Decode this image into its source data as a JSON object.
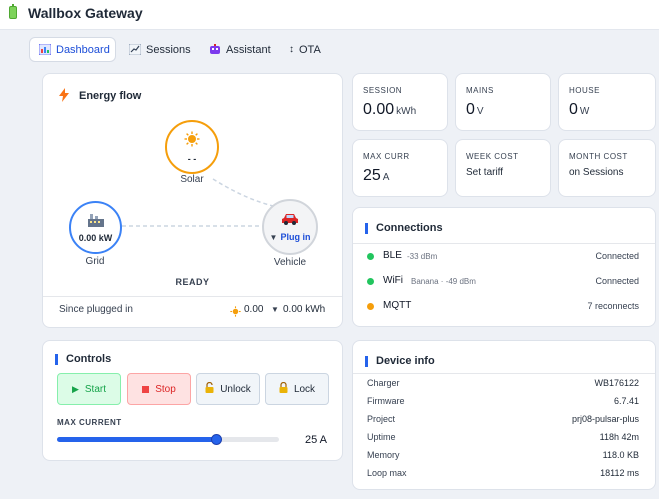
{
  "app": {
    "title": "Wallbox Gateway"
  },
  "tabs": [
    {
      "label": "Dashboard",
      "icon": "chart-icon",
      "active": true
    },
    {
      "label": "Sessions",
      "icon": "trend-icon",
      "active": false
    },
    {
      "label": "Assistant",
      "icon": "robot-icon",
      "active": false
    },
    {
      "label": "OTA",
      "icon": "arrows-icon",
      "active": false
    }
  ],
  "energy_flow": {
    "title": "Energy flow",
    "solar": {
      "label": "Solar",
      "value": "- -"
    },
    "grid": {
      "label": "Grid",
      "value": "0.00 kW"
    },
    "vehicle": {
      "label": "Vehicle",
      "value": "Plug in"
    },
    "state": "READY",
    "since_label": "Since plugged in",
    "since_solar": "0.00",
    "since_total": "0.00 kWh"
  },
  "stats": [
    {
      "label": "SESSION",
      "value": "0.00",
      "unit": "kWh"
    },
    {
      "label": "MAINS",
      "value": "0",
      "unit": "V"
    },
    {
      "label": "HOUSE",
      "value": "0",
      "unit": "W"
    },
    {
      "label": "MAX CURR",
      "value": "25",
      "unit": "A"
    },
    {
      "label": "WEEK COST",
      "text": "Set tariff"
    },
    {
      "label": "MONTH COST",
      "text": "on Sessions"
    }
  ],
  "connections": {
    "title": "Connections",
    "items": [
      {
        "name": "BLE",
        "detail": "-33 dBm",
        "status": "Connected",
        "color": "#22c55e"
      },
      {
        "name": "WiFi",
        "detail": "Banana · -49 dBm",
        "status": "Connected",
        "color": "#22c55e"
      },
      {
        "name": "MQTT",
        "detail": "",
        "status": "7 reconnects",
        "color": "#f59e0b"
      }
    ]
  },
  "controls": {
    "title": "Controls",
    "start_label": "Start",
    "stop_label": "Stop",
    "unlock_label": "Unlock",
    "lock_label": "Lock",
    "max_current_label": "MAX CURRENT",
    "max_current_value": "25 A",
    "slider_fraction": 0.72
  },
  "device_info": {
    "title": "Device info",
    "rows": [
      {
        "key": "Charger",
        "value": "WB176122"
      },
      {
        "key": "Firmware",
        "value": "6.7.41"
      },
      {
        "key": "Project",
        "value": "prj08-pulsar-plus"
      },
      {
        "key": "Uptime",
        "value": "118h 42m"
      },
      {
        "key": "Memory",
        "value": "118.0 KB"
      },
      {
        "key": "Loop max",
        "value": "18112 ms"
      }
    ]
  },
  "colors": {
    "accent": "#2563eb",
    "solar": "#f59e0b",
    "ok": "#22c55e",
    "warn": "#f59e0b"
  }
}
